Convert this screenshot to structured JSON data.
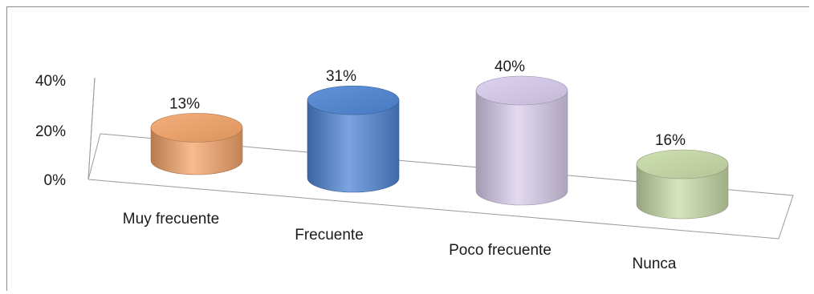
{
  "chart_data": {
    "type": "bar",
    "categories": [
      "Muy frecuente",
      "Frecuente",
      "Poco frecuente",
      "Nunca"
    ],
    "values": [
      13,
      31,
      40,
      16
    ],
    "data_labels": [
      "13%",
      "31%",
      "40%",
      "16%"
    ],
    "y_ticks": [
      "0%",
      "20%",
      "40%"
    ],
    "ylim": [
      0,
      40
    ],
    "title": "",
    "xlabel": "",
    "ylabel": "",
    "style": "3d-cylinder",
    "colors": [
      "#f4a46a",
      "#4f86d6",
      "#d9cdee",
      "#c9dba9"
    ],
    "grid": false,
    "legend": "none"
  }
}
